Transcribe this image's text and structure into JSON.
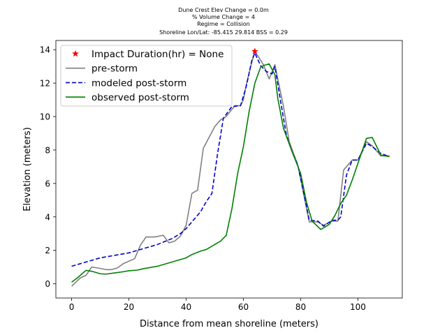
{
  "chart_data": {
    "type": "line",
    "title_lines": [
      "Dune Crest Elev Change = 0.0m",
      "% Volume Change = 4",
      "Regime = Collision",
      "Shoreline Lon/Lat: -85.415 29.814   BSS = 0.29"
    ],
    "xlabel": "Distance from mean shoreline (meters)",
    "ylabel": "Elevation (meters)",
    "xlim": [
      -5.5,
      115.5
    ],
    "ylim": [
      -0.85,
      14.55
    ],
    "xticks": [
      0,
      20,
      40,
      60,
      80,
      100
    ],
    "yticks": [
      0,
      2,
      4,
      6,
      8,
      10,
      12,
      14
    ],
    "grid": false,
    "legend_position": "top-left",
    "series": [
      {
        "name": "Impact Duration(hr) = None",
        "kind": "marker",
        "marker": "star",
        "color": "#ff0000",
        "points": [
          [
            64,
            13.9
          ]
        ]
      },
      {
        "name": "pre-storm",
        "kind": "line",
        "style": "solid",
        "color": "#808080",
        "points": [
          [
            0,
            -0.15
          ],
          [
            3,
            0.35
          ],
          [
            5,
            0.5
          ],
          [
            7,
            1.0
          ],
          [
            9,
            0.95
          ],
          [
            12,
            0.85
          ],
          [
            14,
            0.85
          ],
          [
            16,
            0.95
          ],
          [
            18,
            1.2
          ],
          [
            22,
            1.5
          ],
          [
            24,
            2.3
          ],
          [
            26,
            2.8
          ],
          [
            29,
            2.8
          ],
          [
            32,
            2.9
          ],
          [
            34,
            2.45
          ],
          [
            36,
            2.55
          ],
          [
            38,
            2.85
          ],
          [
            40,
            3.5
          ],
          [
            42,
            5.4
          ],
          [
            44,
            5.6
          ],
          [
            46,
            8.1
          ],
          [
            50,
            9.4
          ],
          [
            52,
            9.8
          ],
          [
            54,
            10.0
          ],
          [
            57,
            10.65
          ],
          [
            59,
            10.65
          ],
          [
            60,
            11.0
          ],
          [
            61,
            11.9
          ],
          [
            63,
            13.3
          ],
          [
            64,
            13.85
          ],
          [
            65,
            13.65
          ],
          [
            67,
            13.1
          ],
          [
            69,
            12.25
          ],
          [
            71,
            13.1
          ],
          [
            74,
            10.6
          ],
          [
            76,
            8.5
          ],
          [
            79,
            7.1
          ],
          [
            81,
            5.4
          ],
          [
            83,
            3.7
          ],
          [
            86,
            3.7
          ],
          [
            88,
            3.5
          ],
          [
            91,
            3.75
          ],
          [
            93,
            3.75
          ],
          [
            95,
            6.8
          ],
          [
            98,
            7.4
          ],
          [
            100,
            7.4
          ],
          [
            103,
            8.5
          ],
          [
            105,
            8.25
          ],
          [
            108,
            7.65
          ],
          [
            111,
            7.65
          ]
        ]
      },
      {
        "name": "modeled post-storm",
        "kind": "line",
        "style": "dashed",
        "color": "#0000cc",
        "points": [
          [
            0,
            1.05
          ],
          [
            5,
            1.3
          ],
          [
            10,
            1.55
          ],
          [
            15,
            1.7
          ],
          [
            20,
            1.85
          ],
          [
            25,
            2.1
          ],
          [
            30,
            2.35
          ],
          [
            35,
            2.7
          ],
          [
            38,
            3.0
          ],
          [
            40,
            3.3
          ],
          [
            43,
            3.9
          ],
          [
            45,
            4.3
          ],
          [
            47,
            4.9
          ],
          [
            49,
            5.4
          ],
          [
            51,
            7.8
          ],
          [
            53,
            9.9
          ],
          [
            56,
            10.6
          ],
          [
            59,
            10.65
          ],
          [
            61,
            11.8
          ],
          [
            63,
            13.4
          ],
          [
            64,
            13.8
          ],
          [
            66,
            13.05
          ],
          [
            68,
            12.7
          ],
          [
            70,
            12.55
          ],
          [
            71,
            13.0
          ],
          [
            73,
            10.9
          ],
          [
            75,
            8.9
          ],
          [
            77,
            7.9
          ],
          [
            79,
            7.1
          ],
          [
            81,
            5.5
          ],
          [
            83,
            3.8
          ],
          [
            86,
            3.75
          ],
          [
            88,
            3.45
          ],
          [
            91,
            3.8
          ],
          [
            93,
            3.8
          ],
          [
            94,
            4.0
          ],
          [
            96,
            6.5
          ],
          [
            98,
            7.4
          ],
          [
            100,
            7.4
          ],
          [
            103,
            8.4
          ],
          [
            105,
            8.2
          ],
          [
            108,
            7.8
          ],
          [
            111,
            7.6
          ]
        ]
      },
      {
        "name": "observed post-storm",
        "kind": "line",
        "style": "solid",
        "color": "#008000",
        "points": [
          [
            0,
            0.1
          ],
          [
            2,
            0.35
          ],
          [
            5,
            0.8
          ],
          [
            7,
            0.75
          ],
          [
            10,
            0.6
          ],
          [
            12,
            0.58
          ],
          [
            15,
            0.65
          ],
          [
            18,
            0.72
          ],
          [
            20,
            0.78
          ],
          [
            23,
            0.82
          ],
          [
            25,
            0.9
          ],
          [
            30,
            1.05
          ],
          [
            33,
            1.2
          ],
          [
            36,
            1.35
          ],
          [
            40,
            1.55
          ],
          [
            42,
            1.75
          ],
          [
            45,
            1.95
          ],
          [
            47,
            2.05
          ],
          [
            50,
            2.35
          ],
          [
            52,
            2.55
          ],
          [
            54,
            2.9
          ],
          [
            56,
            4.5
          ],
          [
            58,
            6.6
          ],
          [
            60,
            8.2
          ],
          [
            62,
            10.3
          ],
          [
            64,
            12.0
          ],
          [
            66,
            12.95
          ],
          [
            67,
            13.05
          ],
          [
            69,
            13.15
          ],
          [
            71,
            12.5
          ],
          [
            72,
            11.1
          ],
          [
            74,
            9.3
          ],
          [
            77,
            7.9
          ],
          [
            80,
            6.6
          ],
          [
            82,
            4.9
          ],
          [
            84,
            3.75
          ],
          [
            87,
            3.25
          ],
          [
            90,
            3.55
          ],
          [
            92,
            4.1
          ],
          [
            94,
            4.8
          ],
          [
            96,
            5.3
          ],
          [
            98,
            6.2
          ],
          [
            100,
            7.2
          ],
          [
            103,
            8.7
          ],
          [
            105,
            8.75
          ],
          [
            108,
            7.7
          ],
          [
            111,
            7.6
          ]
        ]
      }
    ]
  }
}
